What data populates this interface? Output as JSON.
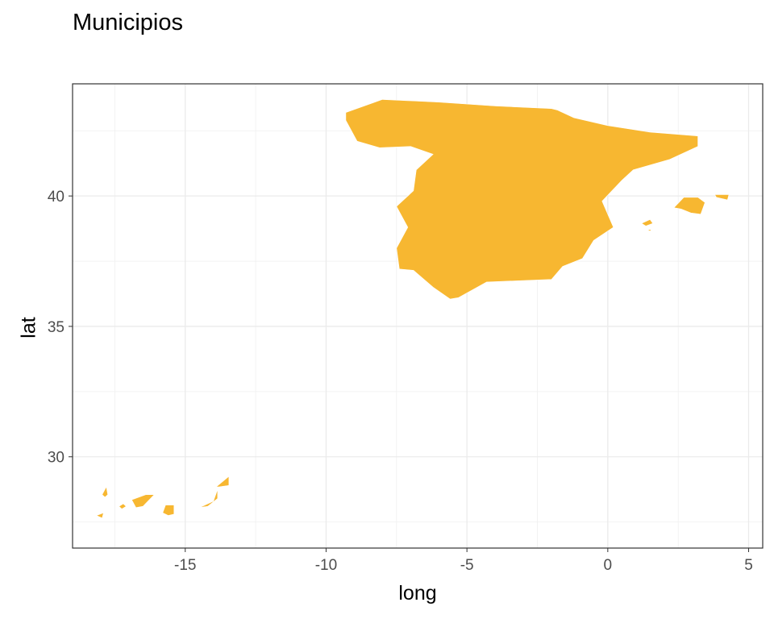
{
  "chart_data": {
    "type": "map",
    "title": "Municipios",
    "xlabel": "long",
    "ylabel": "lat",
    "xlim": [
      -19,
      5.5
    ],
    "ylim": [
      26.5,
      44.3
    ],
    "x_ticks": [
      -15,
      -10,
      -5,
      0,
      5
    ],
    "y_ticks": [
      30,
      35,
      40
    ],
    "x_tick_labels": [
      "-15",
      "-10",
      "-5",
      "0",
      "5"
    ],
    "y_tick_labels": [
      "30",
      "35",
      "40"
    ],
    "grid": true,
    "fill_color": "#F7B731",
    "regions": [
      {
        "name": "Peninsula",
        "polygon": [
          [
            -9.3,
            43.2
          ],
          [
            -8.0,
            43.7
          ],
          [
            -6.0,
            43.6
          ],
          [
            -4.0,
            43.45
          ],
          [
            -2.0,
            43.35
          ],
          [
            -1.8,
            43.3
          ],
          [
            -1.2,
            43.0
          ],
          [
            0.0,
            42.7
          ],
          [
            1.5,
            42.45
          ],
          [
            3.2,
            42.3
          ],
          [
            3.2,
            41.9
          ],
          [
            2.2,
            41.4
          ],
          [
            0.9,
            41.0
          ],
          [
            0.5,
            40.6
          ],
          [
            -0.2,
            39.8
          ],
          [
            0.2,
            38.8
          ],
          [
            -0.5,
            38.3
          ],
          [
            -0.9,
            37.6
          ],
          [
            -1.6,
            37.3
          ],
          [
            -2.0,
            36.8
          ],
          [
            -4.3,
            36.7
          ],
          [
            -5.3,
            36.1
          ],
          [
            -5.6,
            36.05
          ],
          [
            -6.2,
            36.5
          ],
          [
            -6.9,
            37.15
          ],
          [
            -7.4,
            37.2
          ],
          [
            -7.5,
            38.0
          ],
          [
            -7.1,
            38.8
          ],
          [
            -7.5,
            39.6
          ],
          [
            -6.9,
            40.2
          ],
          [
            -6.8,
            41.0
          ],
          [
            -6.2,
            41.6
          ],
          [
            -7.0,
            41.9
          ],
          [
            -8.1,
            41.85
          ],
          [
            -8.9,
            42.1
          ],
          [
            -9.3,
            42.9
          ]
        ]
      },
      {
        "name": "Mallorca",
        "polygon": [
          [
            2.35,
            39.55
          ],
          [
            2.7,
            39.95
          ],
          [
            3.2,
            39.95
          ],
          [
            3.45,
            39.75
          ],
          [
            3.3,
            39.3
          ],
          [
            2.95,
            39.35
          ],
          [
            2.6,
            39.5
          ]
        ]
      },
      {
        "name": "Menorca",
        "polygon": [
          [
            3.8,
            40.05
          ],
          [
            4.3,
            40.05
          ],
          [
            4.25,
            39.85
          ],
          [
            3.85,
            39.95
          ]
        ]
      },
      {
        "name": "Ibiza",
        "polygon": [
          [
            1.2,
            38.95
          ],
          [
            1.5,
            39.1
          ],
          [
            1.6,
            38.95
          ],
          [
            1.35,
            38.85
          ]
        ]
      },
      {
        "name": "Formentera",
        "polygon": [
          [
            1.4,
            38.7
          ],
          [
            1.55,
            38.72
          ],
          [
            1.5,
            38.65
          ]
        ]
      },
      {
        "name": "Lanzarote",
        "polygon": [
          [
            -13.9,
            28.85
          ],
          [
            -13.45,
            29.25
          ],
          [
            -13.45,
            28.9
          ],
          [
            -13.8,
            28.85
          ]
        ]
      },
      {
        "name": "Fuerteventura",
        "polygon": [
          [
            -14.5,
            28.05
          ],
          [
            -14.0,
            28.3
          ],
          [
            -13.85,
            28.75
          ],
          [
            -13.85,
            28.4
          ],
          [
            -14.2,
            28.1
          ]
        ]
      },
      {
        "name": "Gran Canaria",
        "polygon": [
          [
            -15.8,
            27.85
          ],
          [
            -15.7,
            28.15
          ],
          [
            -15.4,
            28.15
          ],
          [
            -15.4,
            27.8
          ],
          [
            -15.6,
            27.75
          ]
        ]
      },
      {
        "name": "Tenerife",
        "polygon": [
          [
            -16.9,
            28.35
          ],
          [
            -16.4,
            28.55
          ],
          [
            -16.1,
            28.55
          ],
          [
            -16.5,
            28.1
          ],
          [
            -16.75,
            28.05
          ]
        ]
      },
      {
        "name": "La Gomera",
        "polygon": [
          [
            -17.35,
            28.1
          ],
          [
            -17.2,
            28.2
          ],
          [
            -17.1,
            28.1
          ],
          [
            -17.25,
            28.0
          ]
        ]
      },
      {
        "name": "La Palma",
        "polygon": [
          [
            -17.95,
            28.55
          ],
          [
            -17.8,
            28.85
          ],
          [
            -17.75,
            28.55
          ],
          [
            -17.85,
            28.45
          ]
        ]
      },
      {
        "name": "El Hierro",
        "polygon": [
          [
            -18.15,
            27.75
          ],
          [
            -17.9,
            27.85
          ],
          [
            -17.95,
            27.65
          ]
        ]
      }
    ]
  }
}
